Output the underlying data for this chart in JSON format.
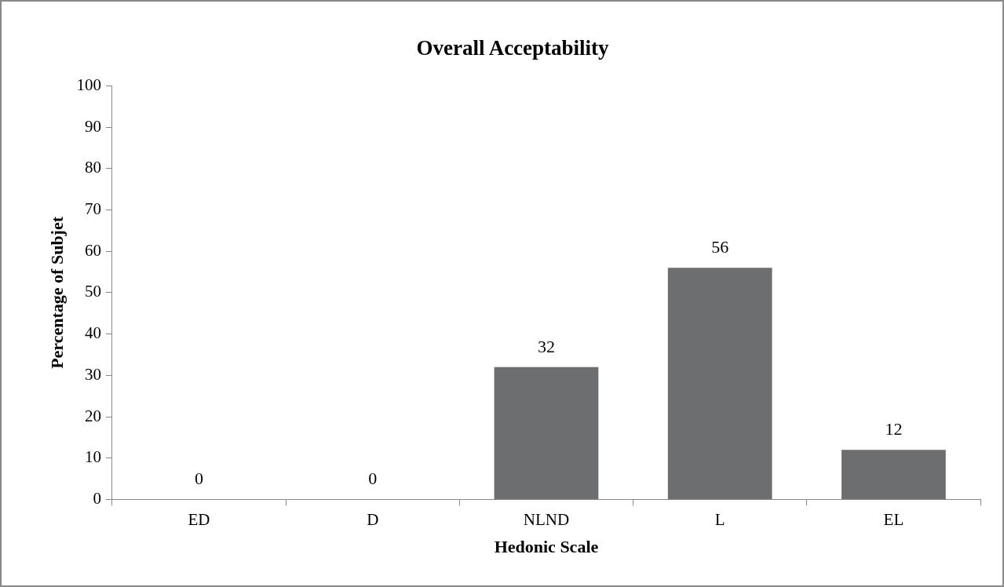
{
  "chart_data": {
    "type": "bar",
    "title": "Overall Acceptability",
    "xlabel": "Hedonic Scale",
    "ylabel": "Percentage of Subjet",
    "categories": [
      "ED",
      "D",
      "NLND",
      "L",
      "EL"
    ],
    "values": [
      0,
      0,
      32,
      56,
      12
    ],
    "color": "#6d6e70",
    "ylim": [
      0,
      100
    ],
    "yticks": [
      0,
      10,
      20,
      30,
      40,
      50,
      60,
      70,
      80,
      90,
      100
    ],
    "data_labels": true
  }
}
